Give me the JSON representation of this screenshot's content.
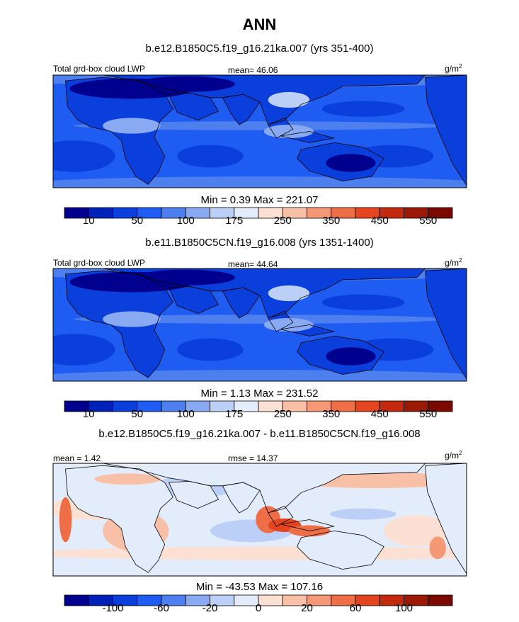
{
  "title": "ANN",
  "panels": [
    {
      "case": "b.e12.B1850C5.f19_g16.21ka.007 (yrs 351-400)",
      "left_label": "Total grd-box cloud LWP",
      "center_label": "mean=  46.06",
      "right_label": "g/m",
      "right_label_sup": "2",
      "minmax": "Min =   0.39 Max = 221.07"
    },
    {
      "case": "b.e11.B1850C5CN.f19_g16.008 (yrs 1351-1400)",
      "left_label": "Total grd-box cloud LWP",
      "center_label": "mean=  44.64",
      "right_label": "g/m",
      "right_label_sup": "2",
      "minmax": "Min =   1.13 Max = 231.52"
    },
    {
      "case": "b.e12.B1850C5.f19_g16.21ka.007 - b.e11.B1850C5CN.f19_g16.008",
      "left_label": "mean =   1.42",
      "center_label": "rmse =  14.37",
      "right_label": "g/m",
      "right_label_sup": "2",
      "minmax": "Min = -43.53 Max = 107.16"
    }
  ],
  "chart_data": [
    {
      "type": "heatmap",
      "title": "ANN",
      "subtitle": "b.e12.B1850C5.f19_g16.21ka.007 (yrs 351-400)",
      "variable": "Total grd-box cloud LWP",
      "units": "g/m2",
      "mean": 46.06,
      "min": 0.39,
      "max": 221.07,
      "colorbar_labels": [
        "10",
        "50",
        "100",
        "175",
        "250",
        "350",
        "450",
        "550"
      ],
      "colorbar_colors": [
        "#00008f",
        "#0022b8",
        "#0a3fdc",
        "#1f5cf2",
        "#4e7fef",
        "#89a9f2",
        "#bccff6",
        "#e2ecfb",
        "#fbe0d3",
        "#f8c0a6",
        "#f49876",
        "#ee6e48",
        "#e4451f",
        "#c32a0d",
        "#9a1a05",
        "#7a0a00"
      ]
    },
    {
      "type": "heatmap",
      "subtitle": "b.e11.B1850C5CN.f19_g16.008 (yrs 1351-1400)",
      "variable": "Total grd-box cloud LWP",
      "units": "g/m2",
      "mean": 44.64,
      "min": 1.13,
      "max": 231.52,
      "colorbar_labels": [
        "10",
        "50",
        "100",
        "175",
        "250",
        "350",
        "450",
        "550"
      ],
      "colorbar_colors": [
        "#00008f",
        "#0022b8",
        "#0a3fdc",
        "#1f5cf2",
        "#4e7fef",
        "#89a9f2",
        "#bccff6",
        "#e2ecfb",
        "#fbe0d3",
        "#f8c0a6",
        "#f49876",
        "#ee6e48",
        "#e4451f",
        "#c32a0d",
        "#9a1a05",
        "#7a0a00"
      ]
    },
    {
      "type": "heatmap",
      "subtitle": "b.e12.B1850C5.f19_g16.21ka.007 - b.e11.B1850C5CN.f19_g16.008",
      "units": "g/m2",
      "mean": 1.42,
      "rmse": 14.37,
      "min": -43.53,
      "max": 107.16,
      "colorbar_labels": [
        "-100",
        "-60",
        "-20",
        "0",
        "20",
        "60",
        "100"
      ],
      "colorbar_colors": [
        "#00008f",
        "#0022b8",
        "#0a3fdc",
        "#1f5cf2",
        "#4e7fef",
        "#89a9f2",
        "#bccff6",
        "#e2ecfb",
        "#fbe0d3",
        "#f8c0a6",
        "#f49876",
        "#ee6e48",
        "#e4451f",
        "#c32a0d",
        "#9a1a05",
        "#7a0a00"
      ]
    }
  ]
}
